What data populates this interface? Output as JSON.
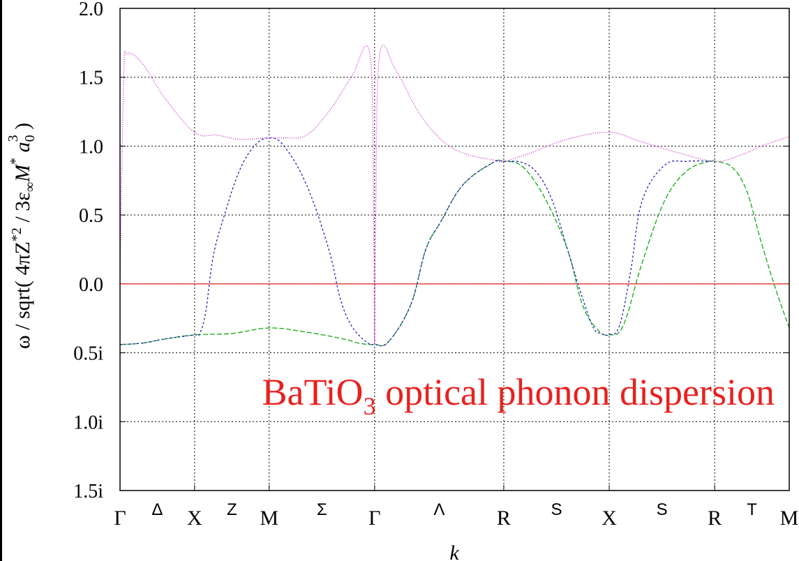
{
  "chart_data": {
    "type": "line",
    "title": "BaTiO",
    "title_sub": "3",
    "title_rest": " optical phonon dispersion",
    "title_color": "#e8211f",
    "xlabel": "k",
    "ylabel_parts": {
      "prefix": "ω / sqrt( 4πZ",
      "sup1": "*2",
      "mid": " / 3ε",
      "sub1": "∞",
      "m": "M",
      "sup2": "*",
      "a": " a",
      "sub2": "0",
      "sup3": "3",
      "suffix": " )"
    },
    "ylim": [
      -1.5,
      2.0
    ],
    "y_ticks": [
      {
        "value": 2.0,
        "label": "2.0"
      },
      {
        "value": 1.5,
        "label": "1.5"
      },
      {
        "value": 1.0,
        "label": "1.0"
      },
      {
        "value": 0.5,
        "label": "0.5"
      },
      {
        "value": 0.0,
        "label": "0.0"
      },
      {
        "value": -0.5,
        "label": "0.5i"
      },
      {
        "value": -1.0,
        "label": "1.0i"
      },
      {
        "value": -1.5,
        "label": "1.5i"
      }
    ],
    "x_points": [
      {
        "pos": 0.0,
        "label": "Γ",
        "grid": false
      },
      {
        "pos": 1.0,
        "label": "X",
        "grid": true
      },
      {
        "pos": 2.0,
        "label": "M",
        "grid": true
      },
      {
        "pos": 3.414,
        "label": "Γ",
        "grid": true
      },
      {
        "pos": 5.146,
        "label": "R",
        "grid": true
      },
      {
        "pos": 6.56,
        "label": "X",
        "grid": true
      },
      {
        "pos": 7.974,
        "label": "R",
        "grid": true
      },
      {
        "pos": 8.974,
        "label": "M",
        "grid": false
      }
    ],
    "x_directions": [
      {
        "pos": 0.5,
        "label": "Δ"
      },
      {
        "pos": 1.5,
        "label": "Z"
      },
      {
        "pos": 2.707,
        "label": "Σ"
      },
      {
        "pos": 4.28,
        "label": "Λ"
      },
      {
        "pos": 5.853,
        "label": "S"
      },
      {
        "pos": 7.267,
        "label": "S"
      },
      {
        "pos": 8.474,
        "label": "T"
      }
    ],
    "xlim": [
      0.0,
      8.974
    ],
    "grid": true,
    "series": [
      {
        "color": "#e8211f",
        "dash": "none",
        "x": [
          0.0,
          8.974
        ],
        "y": [
          0.0,
          0.0
        ]
      },
      {
        "color": "#11a811",
        "dash": "7,3",
        "x": [
          0.0,
          0.3,
          0.6,
          1.0,
          1.5,
          2.0,
          2.5,
          3.0,
          3.2,
          3.414,
          3.6,
          3.9,
          4.1,
          4.3,
          4.6,
          5.0,
          5.146,
          5.4,
          5.7,
          6.0,
          6.2,
          6.4,
          6.56,
          6.75,
          7.0,
          7.3,
          7.6,
          7.9,
          7.974,
          8.2,
          8.4,
          8.6,
          8.8,
          8.974
        ],
        "y": [
          -0.44,
          -0.43,
          -0.4,
          -0.37,
          -0.36,
          -0.32,
          -0.35,
          -0.4,
          -0.43,
          -0.44,
          -0.42,
          -0.15,
          0.25,
          0.45,
          0.72,
          0.88,
          0.89,
          0.85,
          0.62,
          0.25,
          -0.15,
          -0.33,
          -0.37,
          -0.3,
          0.15,
          0.6,
          0.82,
          0.89,
          0.89,
          0.85,
          0.68,
          0.3,
          -0.05,
          -0.32
        ]
      },
      {
        "color": "#2222bb",
        "dash": "3,3",
        "x": [
          0.0,
          0.3,
          0.6,
          1.0,
          1.07,
          1.15,
          1.25,
          1.4,
          1.6,
          1.8,
          2.0,
          2.2,
          2.5,
          2.8,
          2.95,
          3.1,
          3.3,
          3.414,
          3.6,
          3.9,
          4.1,
          4.3,
          4.6,
          5.0,
          5.146,
          5.4,
          5.6,
          5.8,
          6.0,
          6.2,
          6.35,
          6.45,
          6.56,
          6.7,
          6.85,
          7.0,
          7.3,
          7.6,
          7.974
        ],
        "y": [
          -0.44,
          -0.43,
          -0.4,
          -0.37,
          -0.36,
          -0.2,
          0.2,
          0.5,
          0.82,
          1.0,
          1.06,
          1.0,
          0.72,
          0.25,
          -0.1,
          -0.3,
          -0.42,
          -0.44,
          -0.42,
          -0.15,
          0.25,
          0.45,
          0.72,
          0.88,
          0.89,
          0.88,
          0.8,
          0.6,
          0.25,
          -0.1,
          -0.32,
          -0.36,
          -0.37,
          -0.3,
          0.1,
          0.6,
          0.86,
          0.89,
          0.89
        ]
      },
      {
        "color": "#cc22cc",
        "dash": "1,2",
        "x": [
          0.0,
          0.05,
          0.1,
          0.3,
          0.6,
          1.0,
          1.3,
          1.6,
          2.0,
          2.2,
          2.5,
          2.8,
          3.1,
          3.35,
          3.4,
          3.414,
          3.43,
          3.48,
          3.7,
          4.0,
          4.3,
          4.6,
          5.0,
          5.146,
          5.5,
          6.0,
          6.56,
          7.0,
          7.5,
          7.974,
          8.3,
          8.6,
          8.974
        ],
        "y": [
          0.0,
          1.5,
          1.67,
          1.6,
          1.35,
          1.1,
          1.08,
          1.05,
          1.06,
          1.06,
          1.08,
          1.25,
          1.5,
          1.67,
          0.5,
          -0.44,
          0.5,
          1.66,
          1.55,
          1.25,
          1.05,
          0.95,
          0.9,
          0.89,
          0.95,
          1.05,
          1.1,
          1.03,
          0.95,
          0.89,
          0.93,
          1.0,
          1.07
        ]
      }
    ]
  }
}
